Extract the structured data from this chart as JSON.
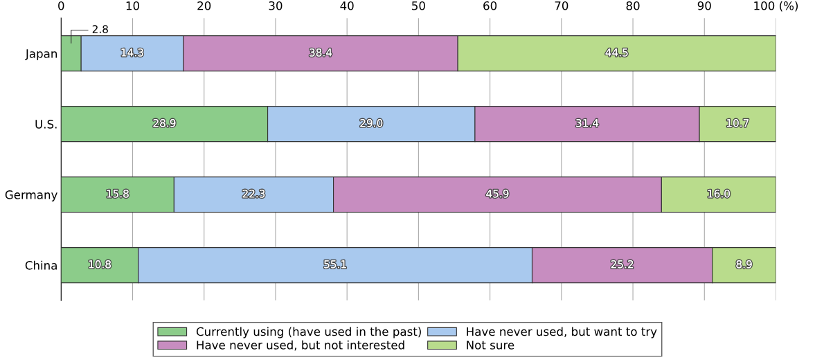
{
  "chart_data": {
    "type": "bar",
    "orientation": "horizontal",
    "stacked": true,
    "categories": [
      "Japan",
      "U.S.",
      "Germany",
      "China"
    ],
    "series": [
      {
        "name": "Currently using (have used in the past)",
        "color": "#8ccc8a",
        "values": [
          2.8,
          28.9,
          15.8,
          10.8
        ],
        "value_labels": [
          null,
          "28.9",
          "15.8",
          "10.8"
        ]
      },
      {
        "name": "Have never used, but want to try",
        "color": "#a9c9ee",
        "values": [
          14.3,
          29.0,
          22.3,
          55.1
        ],
        "value_labels": [
          "14.3",
          "29.0",
          "22.3",
          "55.1"
        ]
      },
      {
        "name": "Have never used, but not interested",
        "color": "#c78dc0",
        "values": [
          38.4,
          31.4,
          45.9,
          25.2
        ],
        "value_labels": [
          "38.4",
          "31.4",
          "45.9",
          "25.2"
        ]
      },
      {
        "name": "Not sure",
        "color": "#b9dc8c",
        "values": [
          44.5,
          10.7,
          16.0,
          8.9
        ],
        "value_labels": [
          "44.5",
          "10.7",
          "16.0",
          "8.9"
        ]
      }
    ],
    "xlim": [
      0,
      100
    ],
    "xticks": [
      0,
      10,
      20,
      30,
      40,
      50,
      60,
      70,
      80,
      90,
      {
        "value": 100,
        "label": "100 (%)"
      }
    ],
    "grid": "x",
    "legend": "bottom",
    "annotations": [
      {
        "text": "2.8",
        "x": 2.8,
        "y": "Japan"
      }
    ]
  }
}
